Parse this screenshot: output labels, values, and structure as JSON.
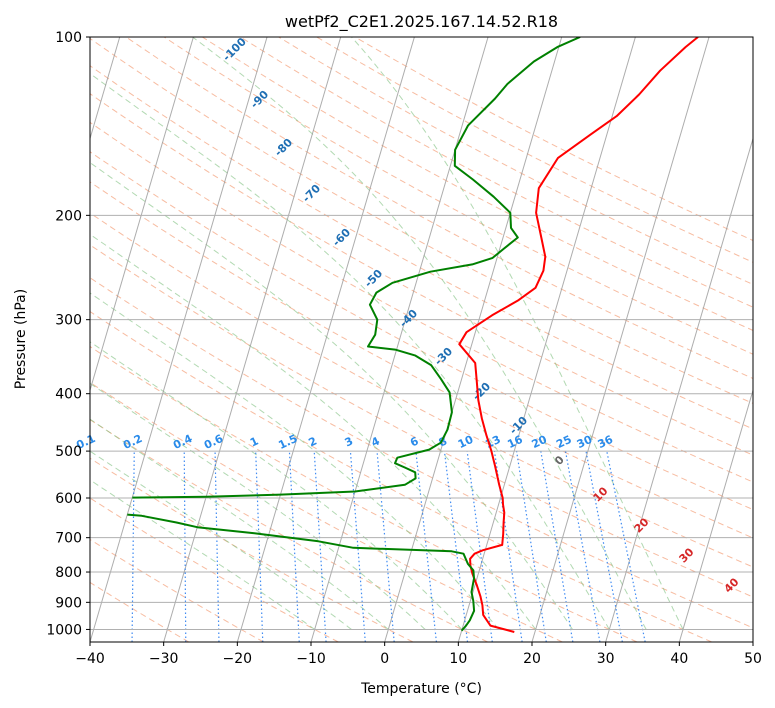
{
  "chart_data": {
    "type": "line",
    "title": "wetPf2_C2E1.2025.167.14.52.R18",
    "xlabel": "Temperature (°C)",
    "ylabel": "Pressure (hPa)",
    "xlim": [
      -40,
      50
    ],
    "ylim": [
      1050,
      100
    ],
    "y_scale": "log",
    "grid": true,
    "x_ticks": [
      "−40",
      "−30",
      "−20",
      "−10",
      "0",
      "10",
      "20",
      "30",
      "40",
      "50"
    ],
    "y_ticks": [
      "100",
      "200",
      "300",
      "400",
      "500",
      "600",
      "700",
      "800",
      "900",
      "1000"
    ],
    "background_lines": {
      "isotherm_labels": [
        "-100",
        "-90",
        "-80",
        "-70",
        "-60",
        "-50",
        "-40",
        "-30",
        "-20",
        "-10",
        "0",
        "10",
        "20",
        "30",
        "40"
      ],
      "mixing_ratio_labels": [
        "0.1",
        "0.2",
        "0.4",
        "0.6",
        "1",
        "1.5",
        "2",
        "3",
        "4",
        "6",
        "8",
        "10",
        "13",
        "16",
        "20",
        "25",
        "30",
        "36"
      ]
    },
    "series": [
      {
        "color": "#ff0000",
        "points": [
          {
            "t": 17.2,
            "p": 1010
          },
          {
            "t": 13.7,
            "p": 985
          },
          {
            "t": 12.3,
            "p": 945
          },
          {
            "t": 11.8,
            "p": 910
          },
          {
            "t": 11.2,
            "p": 880
          },
          {
            "t": 10.2,
            "p": 840
          },
          {
            "t": 9.2,
            "p": 805
          },
          {
            "t": 8.6,
            "p": 780
          },
          {
            "t": 8.3,
            "p": 760
          },
          {
            "t": 8.7,
            "p": 745
          },
          {
            "t": 9.7,
            "p": 735
          },
          {
            "t": 12.1,
            "p": 720
          },
          {
            "t": 11.8,
            "p": 690
          },
          {
            "t": 11.4,
            "p": 660
          },
          {
            "t": 11.1,
            "p": 635
          },
          {
            "t": 10.6,
            "p": 615
          },
          {
            "t": 10.3,
            "p": 600
          },
          {
            "t": 9.3,
            "p": 570
          },
          {
            "t": 8.0,
            "p": 530
          },
          {
            "t": 6.9,
            "p": 500
          },
          {
            "t": 5.6,
            "p": 470
          },
          {
            "t": 4.3,
            "p": 440
          },
          {
            "t": 3.1,
            "p": 410
          },
          {
            "t": 2.1,
            "p": 380
          },
          {
            "t": 1.2,
            "p": 355
          },
          {
            "t": -1.7,
            "p": 330
          },
          {
            "t": -1.2,
            "p": 315
          },
          {
            "t": 1.6,
            "p": 295
          },
          {
            "t": 4.6,
            "p": 278
          },
          {
            "t": 6.4,
            "p": 265
          },
          {
            "t": 6.8,
            "p": 248
          },
          {
            "t": 6.5,
            "p": 235
          },
          {
            "t": 5.2,
            "p": 218
          },
          {
            "t": 3.5,
            "p": 198
          },
          {
            "t": 2.9,
            "p": 180
          },
          {
            "t": 4.3,
            "p": 160
          },
          {
            "t": 7.8,
            "p": 146
          },
          {
            "t": 10.6,
            "p": 136
          },
          {
            "t": 12.8,
            "p": 125
          },
          {
            "t": 14.7,
            "p": 114
          },
          {
            "t": 17.2,
            "p": 104
          },
          {
            "t": 18.5,
            "p": 100
          }
        ]
      },
      {
        "color": "#008000",
        "points": [
          {
            "t": 10.0,
            "p": 1005
          },
          {
            "t": 10.4,
            "p": 985
          },
          {
            "t": 10.7,
            "p": 965
          },
          {
            "t": 10.9,
            "p": 930
          },
          {
            "t": 10.4,
            "p": 895
          },
          {
            "t": 9.8,
            "p": 865
          },
          {
            "t": 9.6,
            "p": 820
          },
          {
            "t": 9.2,
            "p": 795
          },
          {
            "t": 8.2,
            "p": 775
          },
          {
            "t": 7.2,
            "p": 745
          },
          {
            "t": 5.5,
            "p": 738
          },
          {
            "t": -8.0,
            "p": 728
          },
          {
            "t": -13.0,
            "p": 710
          },
          {
            "t": -22.0,
            "p": 688
          },
          {
            "t": -30.0,
            "p": 672
          },
          {
            "t": -33.0,
            "p": 660
          },
          {
            "t": -38.0,
            "p": 643
          },
          {
            "t": -40.0,
            "p": 640
          }
        ]
      },
      {
        "color": "#008000",
        "points": [
          {
            "t": -40.0,
            "p": 599
          },
          {
            "t": -30.0,
            "p": 597
          },
          {
            "t": -20.0,
            "p": 592
          },
          {
            "t": -10.0,
            "p": 585
          },
          {
            "t": -3.5,
            "p": 570
          },
          {
            "t": -2.3,
            "p": 556
          },
          {
            "t": -2.6,
            "p": 543
          },
          {
            "t": -4.2,
            "p": 533
          },
          {
            "t": -5.7,
            "p": 524
          },
          {
            "t": -5.6,
            "p": 513
          },
          {
            "t": -1.6,
            "p": 497
          },
          {
            "t": -0.3,
            "p": 484
          },
          {
            "t": 0.1,
            "p": 460
          },
          {
            "t": 0.0,
            "p": 430
          },
          {
            "t": -1.1,
            "p": 398
          },
          {
            "t": -2.8,
            "p": 378
          },
          {
            "t": -4.7,
            "p": 358
          },
          {
            "t": -7.2,
            "p": 345
          },
          {
            "t": -10.2,
            "p": 337
          },
          {
            "t": -14.0,
            "p": 333
          },
          {
            "t": -13.5,
            "p": 318
          },
          {
            "t": -13.8,
            "p": 300
          },
          {
            "t": -15.4,
            "p": 283
          },
          {
            "t": -15.0,
            "p": 270
          },
          {
            "t": -13.2,
            "p": 260
          },
          {
            "t": -8.5,
            "p": 249
          },
          {
            "t": -3.1,
            "p": 242
          },
          {
            "t": -0.6,
            "p": 236
          },
          {
            "t": 0.5,
            "p": 228
          },
          {
            "t": 2.0,
            "p": 218
          },
          {
            "t": 0.7,
            "p": 210
          },
          {
            "t": 0.0,
            "p": 198
          },
          {
            "t": -2.9,
            "p": 186
          },
          {
            "t": -6.4,
            "p": 174
          },
          {
            "t": -9.4,
            "p": 165
          },
          {
            "t": -10.0,
            "p": 155
          },
          {
            "t": -9.2,
            "p": 141
          },
          {
            "t": -6.6,
            "p": 127
          },
          {
            "t": -5.5,
            "p": 120
          },
          {
            "t": -2.8,
            "p": 110
          },
          {
            "t": -0.2,
            "p": 104
          },
          {
            "t": 2.5,
            "p": 100
          }
        ]
      }
    ]
  }
}
